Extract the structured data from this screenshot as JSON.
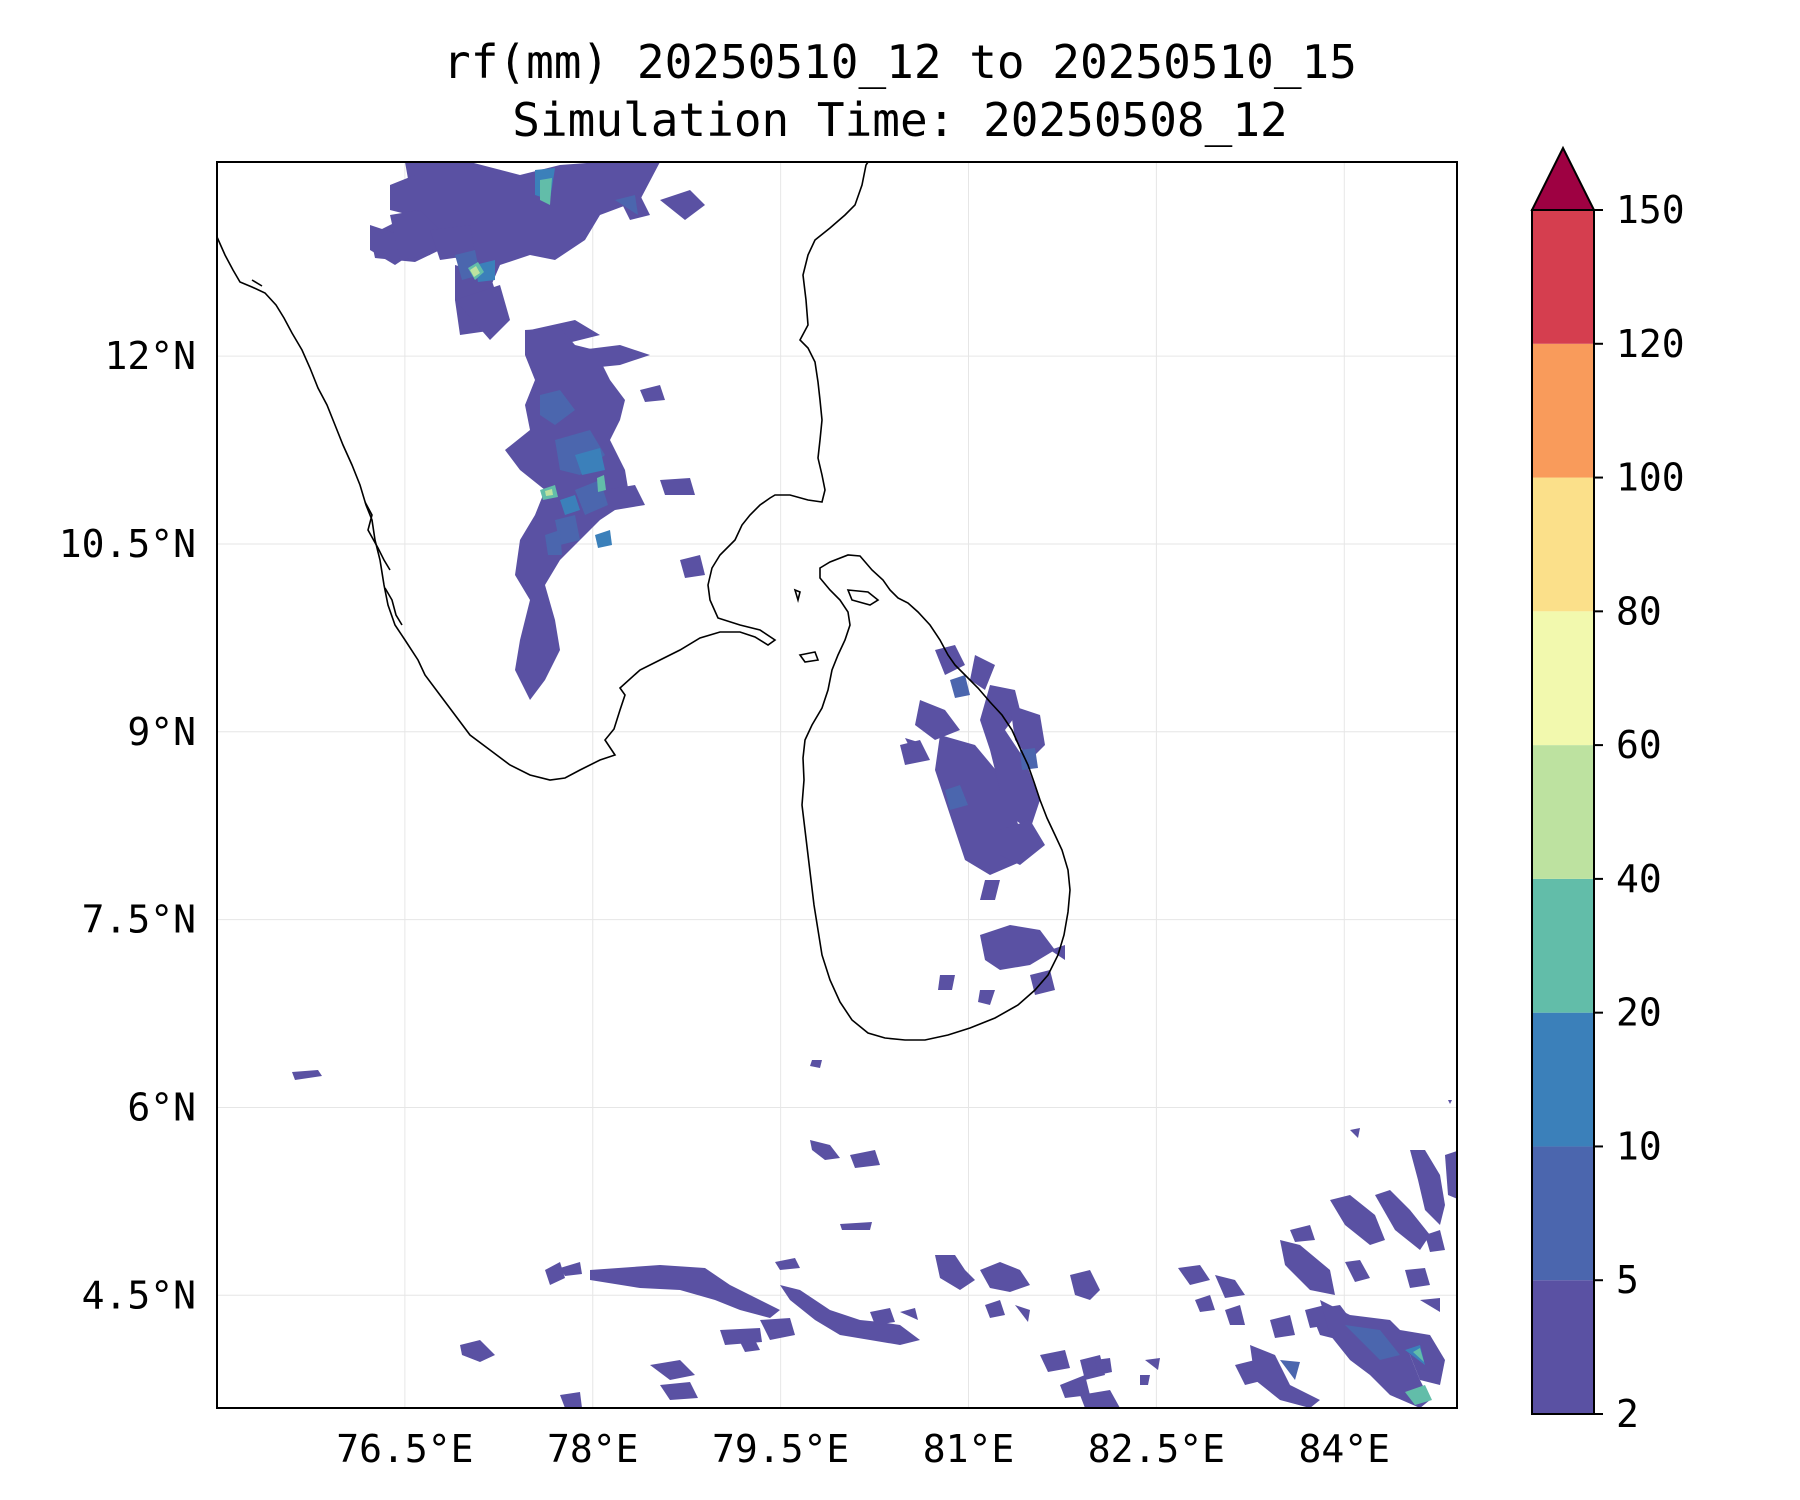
{
  "title": {
    "line1": "rf(mm) 20250510_12 to 20250510_15",
    "line2": "Simulation Time: 20250508_12"
  },
  "map": {
    "lon_range": [
      75.0,
      84.9
    ],
    "lat_range": [
      3.6,
      13.55
    ],
    "lon_ticks": [
      {
        "value": 76.5,
        "label": "76.5°E"
      },
      {
        "value": 78.0,
        "label": "78°E"
      },
      {
        "value": 79.5,
        "label": "79.5°E"
      },
      {
        "value": 81.0,
        "label": "81°E"
      },
      {
        "value": 82.5,
        "label": "82.5°E"
      },
      {
        "value": 84.0,
        "label": "84°E"
      }
    ],
    "lat_ticks": [
      {
        "value": 12.0,
        "label": "12°N"
      },
      {
        "value": 10.5,
        "label": "10.5°N"
      },
      {
        "value": 9.0,
        "label": "9°N"
      },
      {
        "value": 7.5,
        "label": "7.5°N"
      },
      {
        "value": 6.0,
        "label": "6°N"
      },
      {
        "value": 4.5,
        "label": "4.5°N"
      }
    ],
    "grid": true,
    "coastline_color": "#000000"
  },
  "colorbar": {
    "levels": [
      2,
      5,
      10,
      20,
      40,
      60,
      80,
      100,
      120,
      150
    ],
    "labels": [
      "2",
      "5",
      "10",
      "20",
      "40",
      "60",
      "80",
      "100",
      "120",
      "150"
    ],
    "colors": [
      "#5a51a3",
      "#4b66ae",
      "#3b80ba",
      "#62bda9",
      "#bde2a0",
      "#f2f9ae",
      "#fbe08a",
      "#f99b5b",
      "#d53e4f"
    ],
    "extend_color": "#9e0142",
    "extend": "max"
  }
}
